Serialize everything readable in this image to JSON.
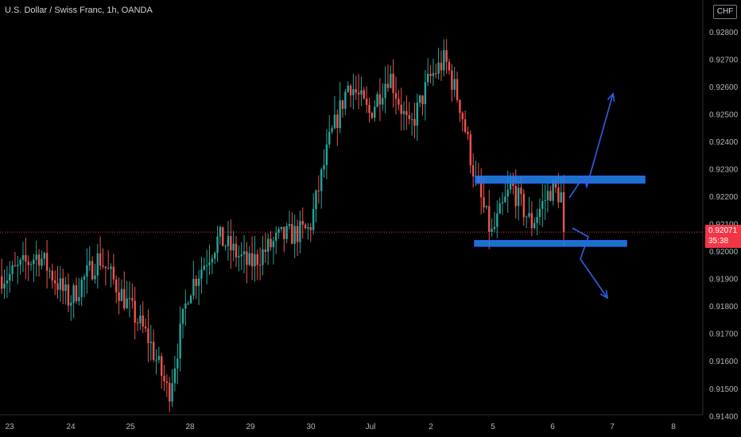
{
  "header": {
    "title": "U.S. Dollar / Swiss Franc, 1h, OANDA",
    "currency": "CHF"
  },
  "price_marker": {
    "price": "0.92071",
    "countdown": "35:38"
  },
  "colors": {
    "up": "#26a69a",
    "down": "#ef5350",
    "box": "#2962ff",
    "box_fill": "#1e88e5",
    "arrow": "#2f5fe6",
    "price_line": "#f23645",
    "background": "#000000"
  },
  "chart_data": {
    "type": "candlestick",
    "title": "U.S. Dollar / Swiss Franc, 1h, OANDA",
    "ylim": [
      0.9137,
      0.9291
    ],
    "y_ticks": [
      "0.92800",
      "0.92700",
      "0.92600",
      "0.92500",
      "0.92400",
      "0.92300",
      "0.92200",
      "0.92100",
      "0.92000",
      "0.91900",
      "0.91800",
      "0.91700",
      "0.91600",
      "0.91500",
      "0.91400"
    ],
    "x_ticks": [
      "23",
      "24",
      "25",
      "28",
      "29",
      "30",
      "Jul",
      "2",
      "5",
      "6",
      "7",
      "8"
    ],
    "last_price": 0.92071,
    "close_path": [
      {
        "x": "23",
        "price": 0.9191
      },
      {
        "x": "23",
        "price": 0.9199
      },
      {
        "x": "24",
        "price": 0.9182
      },
      {
        "x": "24",
        "price": 0.9198
      },
      {
        "x": "25",
        "price": 0.918
      },
      {
        "x": "25",
        "price": 0.9168
      },
      {
        "x": "25",
        "price": 0.9148
      },
      {
        "x": "28",
        "price": 0.9186
      },
      {
        "x": "28",
        "price": 0.9205
      },
      {
        "x": "29",
        "price": 0.9195
      },
      {
        "x": "29",
        "price": 0.9205
      },
      {
        "x": "30",
        "price": 0.9208
      },
      {
        "x": "30",
        "price": 0.924
      },
      {
        "x": "30",
        "price": 0.9262
      },
      {
        "x": "Jul",
        "price": 0.925
      },
      {
        "x": "Jul",
        "price": 0.9265
      },
      {
        "x": "Jul",
        "price": 0.9244
      },
      {
        "x": "2",
        "price": 0.9263
      },
      {
        "x": "2",
        "price": 0.927
      },
      {
        "x": "2",
        "price": 0.9253
      },
      {
        "x": "2",
        "price": 0.9225
      },
      {
        "x": "5",
        "price": 0.9206
      },
      {
        "x": "5",
        "price": 0.9224
      },
      {
        "x": "5",
        "price": 0.921
      },
      {
        "x": "6",
        "price": 0.9223
      },
      {
        "x": "6",
        "price": 0.9218
      },
      {
        "x": "6",
        "price": 0.92071
      }
    ],
    "range_boxes": [
      {
        "name": "resistance",
        "from_price": 0.92275,
        "to_price": 0.9225
      },
      {
        "name": "support",
        "from_price": 0.9204,
        "to_price": 0.9202
      }
    ],
    "projections": [
      {
        "name": "bullish-breakout",
        "direction": "up",
        "target_price": 0.9259
      },
      {
        "name": "bearish-breakdown",
        "direction": "down",
        "target_price": 0.9181
      }
    ]
  }
}
